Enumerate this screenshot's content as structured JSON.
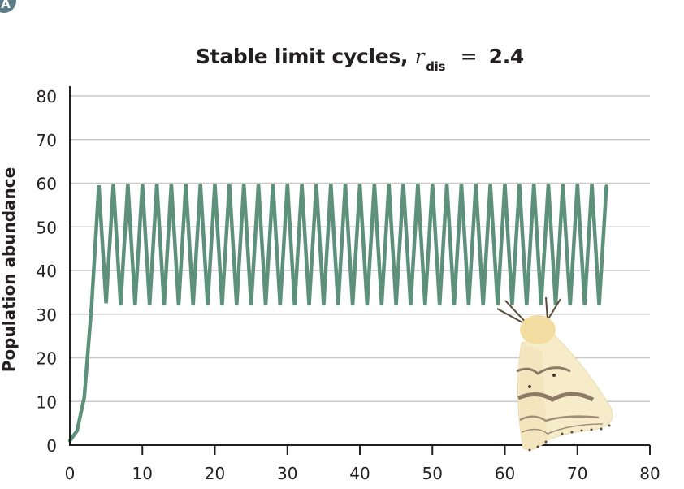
{
  "panel_label": "A",
  "title": {
    "prefix": "Stable limit cycles,",
    "symbol": "r",
    "subscript": "dis",
    "equals": "=",
    "value": "2.4"
  },
  "y_axis": {
    "label": "Population abundance",
    "ticks": [
      "0",
      "10",
      "20",
      "30",
      "40",
      "50",
      "60",
      "70",
      "80"
    ]
  },
  "x_axis": {
    "label": "",
    "ticks": [
      "0",
      "10",
      "20",
      "30",
      "40",
      "50",
      "60",
      "70",
      "80"
    ]
  },
  "colors": {
    "series": "#5e917c",
    "grid": "#c8c8c8",
    "axis": "#231f20",
    "badge": "#5b7b87"
  },
  "illustration": "gypsy-moth",
  "chart_data": {
    "type": "line",
    "title": "Stable limit cycles, r_dis = 2.4",
    "xlabel": "",
    "ylabel": "Population abundance",
    "xlim": [
      0,
      80
    ],
    "ylim": [
      0,
      80
    ],
    "grid": "horizontal",
    "legend": null,
    "series": [
      {
        "name": "Population abundance (r_dis = 2.4)",
        "x": [
          0,
          1,
          2,
          3,
          4,
          5,
          6,
          7,
          8,
          9,
          10,
          11,
          12,
          13,
          14,
          15,
          16,
          17,
          18,
          19,
          20,
          21,
          22,
          23,
          24,
          25,
          26,
          27,
          28,
          29,
          30,
          31,
          32,
          33,
          34,
          35,
          36,
          37,
          38,
          39,
          40,
          41,
          42,
          43,
          44,
          45,
          46,
          47,
          48,
          49,
          50,
          51,
          52,
          53,
          54,
          55,
          56,
          57,
          58,
          59,
          60,
          61,
          62,
          63,
          64,
          65,
          66,
          67,
          68,
          69,
          70,
          71,
          72,
          73,
          74
        ],
        "values": [
          1,
          3.3,
          11,
          32,
          59.5,
          32.5,
          59.8,
          32,
          59.8,
          32,
          59.8,
          32,
          59.8,
          32,
          59.8,
          32,
          59.8,
          32,
          59.8,
          32,
          59.8,
          32,
          59.8,
          32,
          59.8,
          32,
          59.8,
          32,
          59.8,
          32,
          59.8,
          32,
          59.8,
          32,
          59.8,
          32,
          59.8,
          32,
          59.8,
          32,
          59.8,
          32,
          59.8,
          32,
          59.8,
          32,
          59.8,
          32,
          59.8,
          32,
          59.8,
          32,
          59.8,
          32,
          59.8,
          32,
          59.8,
          32,
          59.8,
          32,
          59.8,
          32,
          59.8,
          32,
          59.8,
          32,
          59.8,
          32,
          59.8,
          32,
          59.8,
          32,
          59.8,
          32,
          59.3
        ]
      }
    ],
    "annotations": [
      "Moth illustration in lower right of plot area"
    ]
  }
}
